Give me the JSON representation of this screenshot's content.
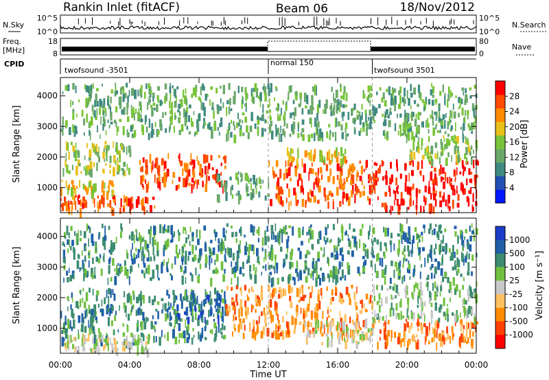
{
  "header": {
    "station": "Rankin Inlet (fitACF)",
    "beam": "Beam 06",
    "date": "18/Nov/2012"
  },
  "noise_panel": {
    "left_label": "N.Sky",
    "right_label": "N.Search",
    "ticks_left": [
      "10^5",
      "10^0"
    ],
    "ticks_right": [
      "10^5",
      "10^0"
    ]
  },
  "freq_panel": {
    "left_label": "Freq.",
    "left_unit": "[MHz]",
    "right_label": "Nave",
    "ticks_left": [
      "18",
      "8"
    ],
    "ticks_right": [
      "80",
      "0"
    ]
  },
  "cpid_panel": {
    "label": "CPID",
    "segments": [
      {
        "name": "twofsound -3501",
        "start_hour": 0
      },
      {
        "name": "normal 150",
        "start_hour": 12
      },
      {
        "name": "twofsound 3501",
        "start_hour": 18
      }
    ]
  },
  "chart_data": [
    {
      "type": "heatmap",
      "name": "power",
      "ylabel": "Slant Range [km]",
      "ylim": [
        180,
        4600
      ],
      "yticks": [
        "1000",
        "2000",
        "3000",
        "4000"
      ],
      "xlim_hours": [
        0,
        24
      ],
      "colorbar": {
        "label": "Power [dB]",
        "ticks": [
          "4",
          "8",
          "12",
          "16",
          "20",
          "24",
          "28"
        ],
        "range": [
          0,
          32
        ],
        "colors": [
          "#0018ff",
          "#2250b4",
          "#3f8a80",
          "#6aa86a",
          "#78c438",
          "#e8c018",
          "#ff8c00",
          "#ff4a00",
          "#ff0000"
        ]
      },
      "regions": [
        {
          "t0": 0,
          "t1": 5.5,
          "r0": 180,
          "r1": 650,
          "level": 7
        },
        {
          "t0": 0,
          "t1": 3,
          "r0": 700,
          "r1": 1200,
          "level": 5
        },
        {
          "t0": 0,
          "t1": 4,
          "r0": 1400,
          "r1": 2400,
          "level": 4
        },
        {
          "t0": 4.5,
          "t1": 9.5,
          "r0": 900,
          "r1": 2000,
          "level": 7
        },
        {
          "t0": 9,
          "t1": 12,
          "r0": 600,
          "r1": 1400,
          "level": 3
        },
        {
          "t0": 12,
          "t1": 18,
          "r0": 400,
          "r1": 1800,
          "level": 7
        },
        {
          "t0": 13,
          "t1": 16.5,
          "r0": 1800,
          "r1": 2200,
          "level": 5
        },
        {
          "t0": 18,
          "t1": 24,
          "r0": 180,
          "r1": 1800,
          "level": 8
        },
        {
          "t0": 20,
          "t1": 24,
          "r0": 1800,
          "r1": 2600,
          "level": 4
        },
        {
          "t0": 0,
          "t1": 24,
          "r0": 2600,
          "r1": 4300,
          "level": 3
        }
      ]
    },
    {
      "type": "heatmap",
      "name": "velocity",
      "ylabel": "Slant Range [km]",
      "ylim": [
        180,
        4600
      ],
      "yticks": [
        "1000",
        "2000",
        "3000",
        "4000"
      ],
      "xlim_hours": [
        0,
        24
      ],
      "xticks": [
        "00:00",
        "04:00",
        "08:00",
        "12:00",
        "16:00",
        "20:00",
        "00:00"
      ],
      "xlabel": "Time UT",
      "colorbar": {
        "label": "Velocity [m s⁻¹]",
        "ticks": [
          "1000",
          "500",
          "100",
          "25",
          "-25",
          "-100",
          "-500",
          "-1000"
        ],
        "colors": [
          "#1a3cc8",
          "#2060a8",
          "#3c8c70",
          "#70c040",
          "#c8c8c8",
          "#ffc060",
          "#ff8c00",
          "#ff4000",
          "#ff0000"
        ]
      },
      "regions": [
        {
          "t0": 0,
          "t1": 9.5,
          "r0": 500,
          "r1": 2200,
          "level": 2
        },
        {
          "t0": 0,
          "t1": 5,
          "r0": 180,
          "r1": 700,
          "level": 4
        },
        {
          "t0": 6,
          "t1": 9.5,
          "r0": 1200,
          "r1": 2000,
          "level": 1
        },
        {
          "t0": 9.5,
          "t1": 18,
          "r0": 700,
          "r1": 2300,
          "level": 6
        },
        {
          "t0": 14,
          "t1": 18,
          "r0": 400,
          "r1": 1200,
          "level": 4
        },
        {
          "t0": 18,
          "t1": 24,
          "r0": 400,
          "r1": 1200,
          "level": 6
        },
        {
          "t0": 18,
          "t1": 24,
          "r0": 1200,
          "r1": 2400,
          "level": 3
        },
        {
          "t0": 0,
          "t1": 24,
          "r0": 2500,
          "r1": 4300,
          "level": 2
        }
      ]
    }
  ]
}
